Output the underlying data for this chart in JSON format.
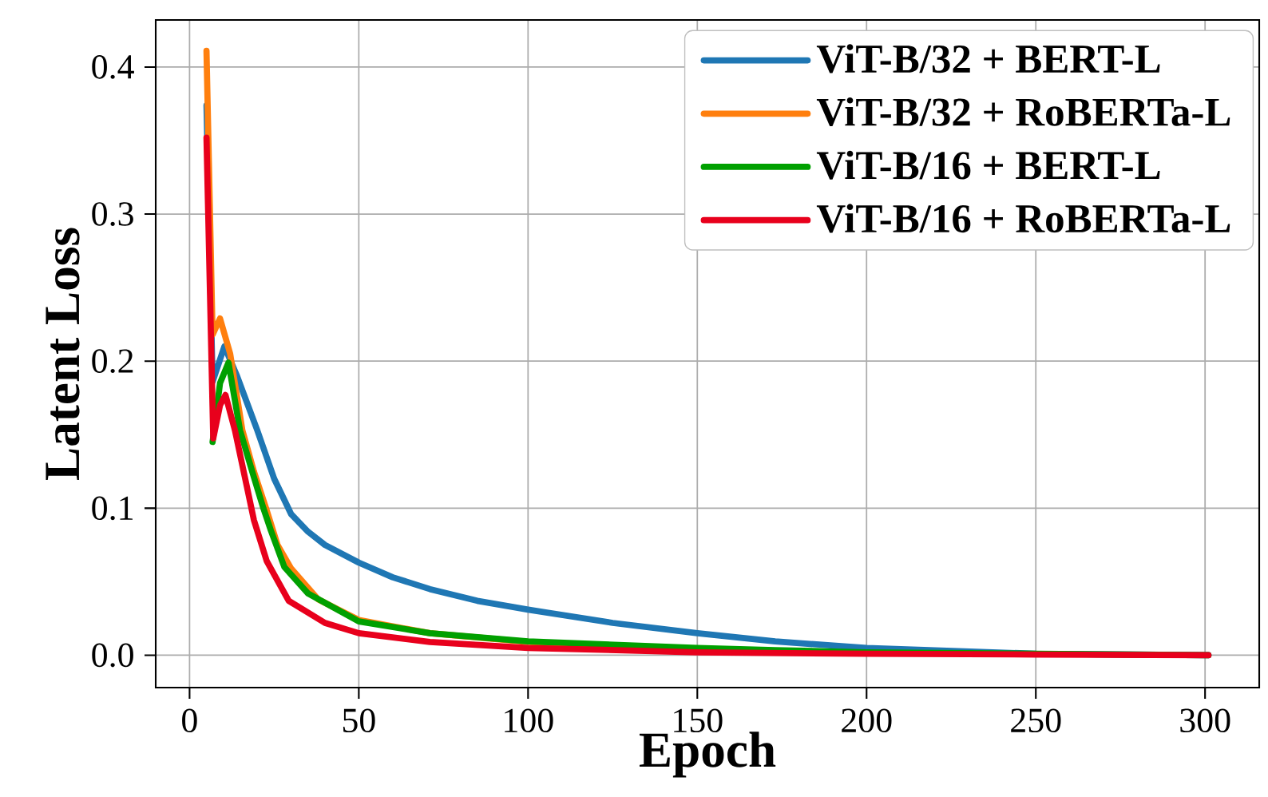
{
  "chart_data": {
    "type": "line",
    "xlabel": "Epoch",
    "ylabel": "Latent Loss",
    "xlim": [
      -10,
      316
    ],
    "ylim": [
      -0.022,
      0.432
    ],
    "xticks": [
      0,
      50,
      100,
      150,
      200,
      250,
      300
    ],
    "yticks": [
      {
        "value": 0,
        "label": "0.0"
      },
      0.1,
      0.2,
      0.3,
      0.4
    ],
    "grid": true,
    "legend": "top right",
    "line_style": "solid",
    "marker": "none",
    "series": [
      {
        "name": "ViT-B/32 + BERT-L",
        "color": "#1f77b4",
        "x": [
          5,
          6.8,
          10.3,
          14,
          20,
          25,
          30,
          35,
          40,
          50,
          60,
          71,
          85,
          100,
          125,
          150,
          173,
          200,
          250,
          301
        ],
        "values": [
          0.374,
          0.186,
          0.21,
          0.19,
          0.153,
          0.12,
          0.096,
          0.084,
          0.075,
          0.063,
          0.053,
          0.045,
          0.037,
          0.031,
          0.022,
          0.015,
          0.0094,
          0.005,
          0.001,
          0.0
        ]
      },
      {
        "name": "ViT-B/32 + RoBERTa-L",
        "color": "#ff7f0e",
        "x": [
          5,
          6.8,
          9,
          12,
          15.6,
          19,
          22.6,
          26,
          30,
          38,
          50,
          71,
          100,
          150
        ],
        "values": [
          0.411,
          0.218,
          0.229,
          0.205,
          0.153,
          0.125,
          0.1,
          0.075,
          0.059,
          0.038,
          0.024,
          0.015,
          0.009,
          0.004
        ]
      },
      {
        "name": "ViT-B/16 + BERT-L",
        "color": "#00a000",
        "x": [
          6.8,
          9,
          11.5,
          14.9,
          18.5,
          21.8,
          24,
          28,
          35,
          50,
          71,
          100,
          150,
          173,
          200,
          250,
          301
        ],
        "values": [
          0.145,
          0.185,
          0.199,
          0.153,
          0.125,
          0.1,
          0.085,
          0.06,
          0.042,
          0.023,
          0.015,
          0.0094,
          0.005,
          0.0035,
          0.002,
          0.001,
          0.0
        ]
      },
      {
        "name": "ViT-B/16 + RoBERTa-L",
        "color": "#e8001c",
        "x": [
          5,
          7,
          9,
          10.6,
          13.4,
          16.9,
          19,
          22.8,
          29.3,
          40,
          50,
          71,
          100,
          150,
          200,
          250,
          301
        ],
        "values": [
          0.352,
          0.1475,
          0.17,
          0.177,
          0.153,
          0.115,
          0.092,
          0.064,
          0.037,
          0.022,
          0.015,
          0.009,
          0.005,
          0.002,
          0.001,
          0.0005,
          0.0
        ]
      }
    ]
  }
}
